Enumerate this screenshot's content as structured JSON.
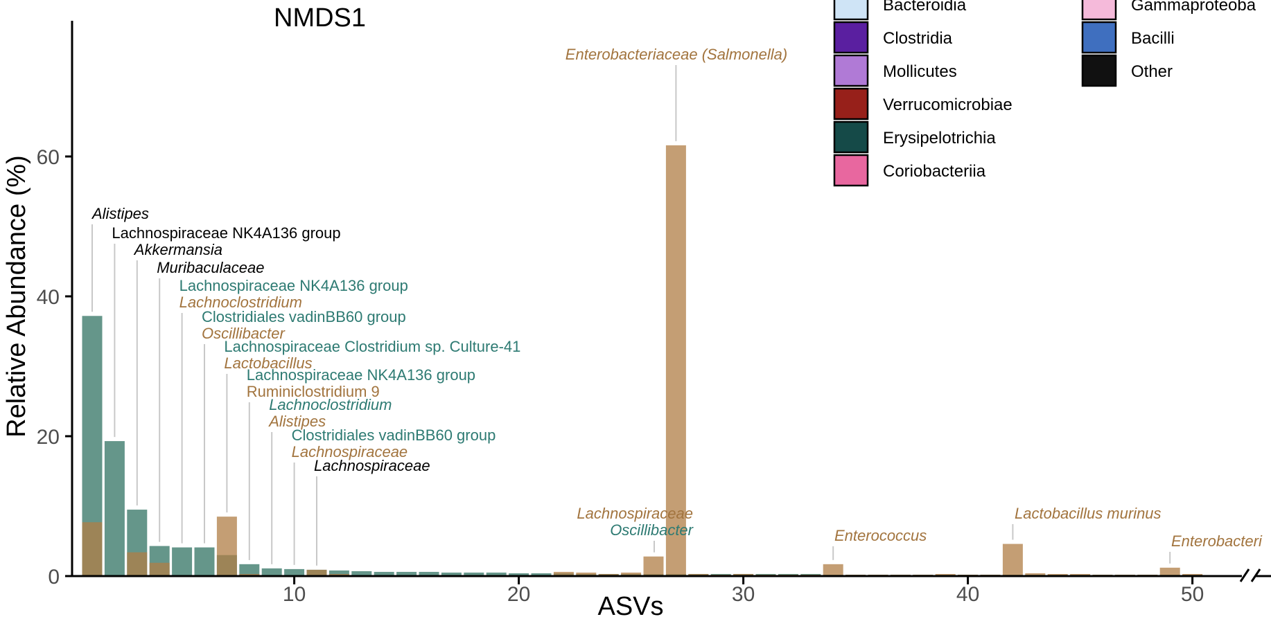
{
  "chart_data": {
    "type": "bar",
    "title": "NMDS1",
    "xlabel": "ASVs",
    "ylabel": "Relative Abundance (%)",
    "xlim": [
      0,
      53
    ],
    "ylim": [
      0,
      67
    ],
    "x_ticks": [
      10,
      20,
      30,
      40,
      50,
      2
    ],
    "y_ticks": [
      0,
      20,
      40,
      60
    ],
    "x_axis_break": true,
    "colors": {
      "teal": "#65968a",
      "brown": "#b07d45",
      "brown_overlap": "#866c48",
      "label_brown": "#a2743e",
      "label_teal": "#2d7a72",
      "label_black": "#000000",
      "leader": "#c8c8c8"
    },
    "series": [
      {
        "name": "teal",
        "color": "#65968a",
        "values": [
          37.2,
          19.3,
          9.5,
          4.3,
          4.1,
          4.1,
          3.0,
          1.7,
          1.1,
          1.0,
          0.9,
          0.8,
          0.7,
          0.6,
          0.6,
          0.6,
          0.5,
          0.5,
          0.5,
          0.4,
          0.4,
          0.4,
          0.3,
          0.3,
          0.3,
          0.3,
          0.3,
          0.3,
          0.3,
          0.3,
          0.3,
          0.3,
          0.3,
          0.2,
          0.2,
          0.2,
          0.2,
          0.2,
          0.2,
          0.2,
          0.2,
          0.2,
          0.2,
          0.2,
          0.2,
          0.2,
          0.2,
          0.2,
          0.2,
          0.2
        ]
      },
      {
        "name": "brown",
        "color": "#b07d45",
        "values": [
          7.7,
          0,
          3.4,
          1.9,
          0,
          0,
          8.5,
          0.3,
          0,
          0,
          0.9,
          0.3,
          0,
          0,
          0,
          0,
          0,
          0,
          0,
          0,
          0,
          0.6,
          0.5,
          0.3,
          0.5,
          2.8,
          61.6,
          0.3,
          0.2,
          0.3,
          0.2,
          0.2,
          0.2,
          1.7,
          0.2,
          0.2,
          0.2,
          0.2,
          0.3,
          0.2,
          0.2,
          4.6,
          0.4,
          0.3,
          0.3,
          0.2,
          0.2,
          0.2,
          1.2,
          0.3
        ]
      }
    ],
    "annotations": [
      {
        "bar": 1,
        "lines": [
          {
            "text": "Alistipes",
            "color": "black",
            "italic": true
          }
        ]
      },
      {
        "bar": 2,
        "lines": [
          {
            "text": "Lachnospiraceae NK4A136 group",
            "color": "black",
            "italic": false
          }
        ]
      },
      {
        "bar": 3,
        "lines": [
          {
            "text": "Akkermansia",
            "color": "black",
            "italic": true
          }
        ]
      },
      {
        "bar": 4,
        "lines": [
          {
            "text": "Muribaculaceae",
            "color": "black",
            "italic": true
          }
        ]
      },
      {
        "bar": 5,
        "lines": [
          {
            "text": "Lachnospiraceae NK4A136 group",
            "color": "teal",
            "italic": false
          },
          {
            "text": "Lachnoclostridium",
            "color": "brown",
            "italic": true
          }
        ]
      },
      {
        "bar": 6,
        "lines": [
          {
            "text": "Clostridiales vadinBB60 group",
            "color": "teal",
            "italic": false
          },
          {
            "text": "Oscillibacter",
            "color": "brown",
            "italic": true
          }
        ]
      },
      {
        "bar": 7,
        "lines": [
          {
            "text": "Lachnospiraceae Clostridium sp. Culture-41",
            "color": "teal",
            "italic": false
          },
          {
            "text": "Lactobacillus",
            "color": "brown",
            "italic": true
          }
        ]
      },
      {
        "bar": 8,
        "lines": [
          {
            "text": "Lachnospiraceae NK4A136 group",
            "color": "teal",
            "italic": false
          },
          {
            "text": "Ruminiclostridium 9",
            "color": "brown",
            "italic": false
          }
        ]
      },
      {
        "bar": 9,
        "lines": [
          {
            "text": "Lachnoclostridium",
            "color": "teal",
            "italic": true
          },
          {
            "text": "Alistipes",
            "color": "brown",
            "italic": true
          }
        ]
      },
      {
        "bar": 10,
        "lines": [
          {
            "text": "Clostridiales vadinBB60 group",
            "color": "teal",
            "italic": false
          },
          {
            "text": "Lachnospiraceae",
            "color": "brown",
            "italic": true
          }
        ]
      },
      {
        "bar": 11,
        "lines": [
          {
            "text": "Lachnospiraceae",
            "color": "black",
            "italic": true
          }
        ]
      },
      {
        "bar": 26,
        "lines": [
          {
            "text": "Lachnospiraceae",
            "color": "brown",
            "italic": true
          },
          {
            "text": "Oscillibacter",
            "color": "teal",
            "italic": true
          }
        ]
      },
      {
        "bar": 27,
        "lines": [
          {
            "text": "Enterobacteriaceae (Salmonella)",
            "color": "brown",
            "italic": true
          }
        ]
      },
      {
        "bar": 34,
        "lines": [
          {
            "text": "Enterococcus",
            "color": "brown",
            "italic": true
          }
        ]
      },
      {
        "bar": 42,
        "lines": [
          {
            "text": "Lactobacillus murinus",
            "color": "brown",
            "italic": true
          }
        ]
      },
      {
        "bar": 49,
        "lines": [
          {
            "text": "Enterobacteri",
            "color": "brown",
            "italic": true
          }
        ]
      }
    ],
    "legend": {
      "placement": "top-right",
      "columns": [
        [
          {
            "label": "Bacteroidia",
            "color": "#cfe4f6"
          },
          {
            "label": "Clostridia",
            "color": "#5a1fa0"
          },
          {
            "label": "Mollicutes",
            "color": "#b07ad6"
          },
          {
            "label": "Verrucomicrobiae",
            "color": "#97201a"
          },
          {
            "label": "Erysipelotrichia",
            "color": "#154a48"
          },
          {
            "label": "Coriobacteriia",
            "color": "#e8679f"
          }
        ],
        [
          {
            "label": "Gammaproteoba",
            "color": "#f5bada"
          },
          {
            "label": "Bacilli",
            "color": "#3f6fbf"
          },
          {
            "label": "Other",
            "color": "#111111"
          }
        ]
      ]
    }
  }
}
